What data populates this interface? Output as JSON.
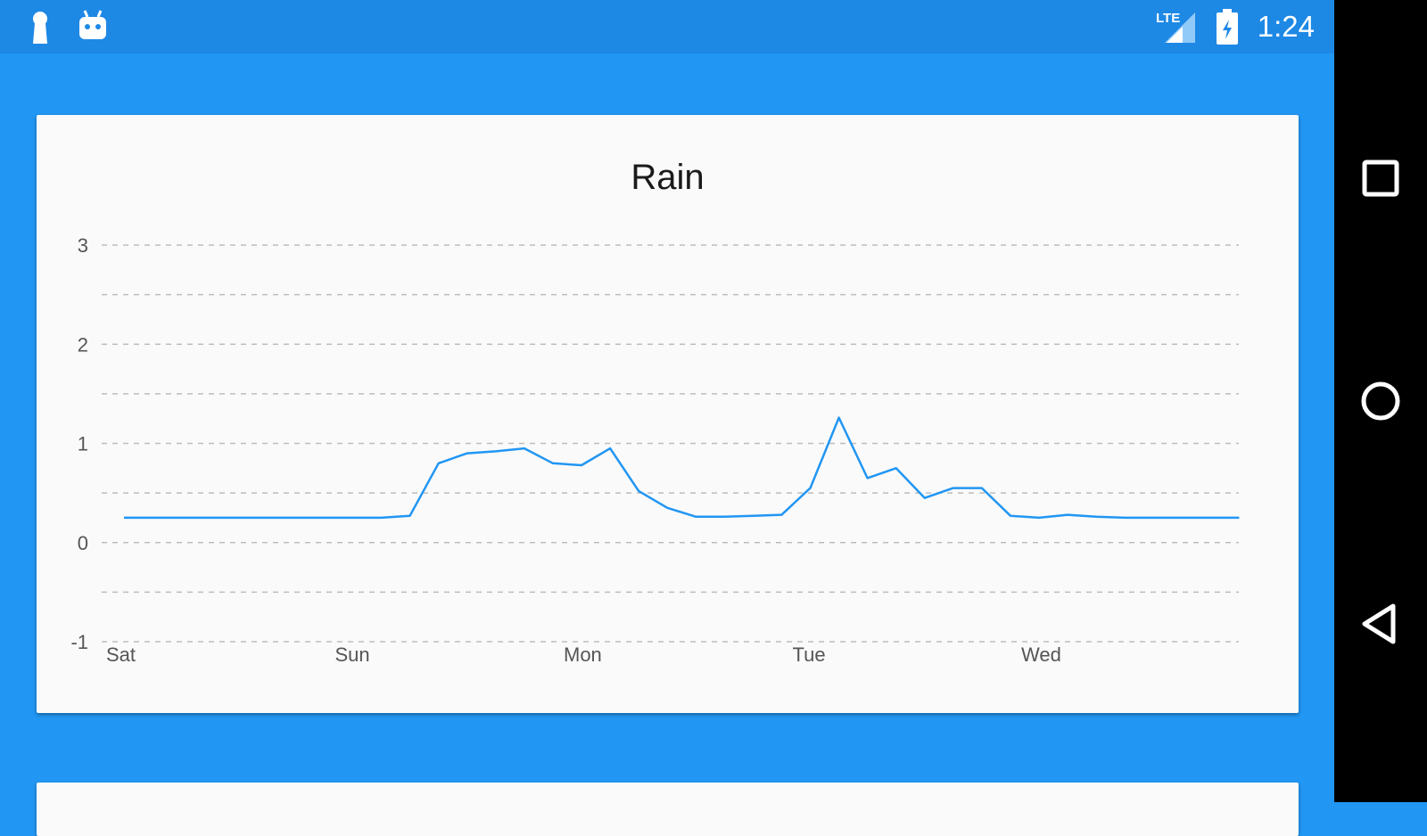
{
  "status_bar": {
    "time": "1:24",
    "network_label": "LTE",
    "left_icons": [
      "keyhole-icon",
      "android-icon"
    ],
    "right_icons": [
      "signal-icon",
      "battery-icon"
    ],
    "background": "#1E88E5"
  },
  "nav_bar": {
    "buttons": [
      "recent-apps",
      "home",
      "back"
    ]
  },
  "colors": {
    "background": "#2196F3",
    "card": "#FAFAFA",
    "line": "#2196F3",
    "grid": "#BDBDBD"
  },
  "chart_data": {
    "type": "line",
    "title": "Rain",
    "xlabel": "",
    "ylabel": "",
    "categories": [
      "Sat",
      "Sun",
      "Mon",
      "Tue",
      "Wed"
    ],
    "yticks": [
      "-1",
      "0",
      "1",
      "2",
      "3"
    ],
    "ylim": [
      -1,
      3
    ],
    "grid": true,
    "grid_style": "dashed",
    "legend": "none",
    "series": [
      {
        "x": [
          0,
          0.125,
          0.25,
          0.375,
          0.5,
          0.625,
          0.75,
          0.875,
          1.0,
          1.125,
          1.25,
          1.375,
          1.5,
          1.625,
          1.75,
          1.875,
          2.0,
          2.125,
          2.25,
          2.375,
          2.5,
          2.625,
          2.75,
          2.875,
          3.0,
          3.125,
          3.25,
          3.375,
          3.5,
          3.625,
          3.75,
          3.875,
          4.0,
          4.125,
          4.25,
          4.375,
          4.5,
          4.625,
          4.75,
          4.875
        ],
        "values": [
          0.25,
          0.25,
          0.25,
          0.25,
          0.25,
          0.25,
          0.25,
          0.25,
          0.25,
          0.25,
          0.27,
          0.8,
          0.9,
          0.92,
          0.95,
          0.8,
          0.78,
          0.95,
          0.52,
          0.35,
          0.26,
          0.26,
          0.27,
          0.28,
          0.55,
          1.26,
          0.65,
          0.75,
          0.45,
          0.55,
          0.55,
          0.27,
          0.25,
          0.28,
          0.26,
          0.25,
          0.25,
          0.25,
          0.25,
          0.25
        ]
      }
    ]
  }
}
